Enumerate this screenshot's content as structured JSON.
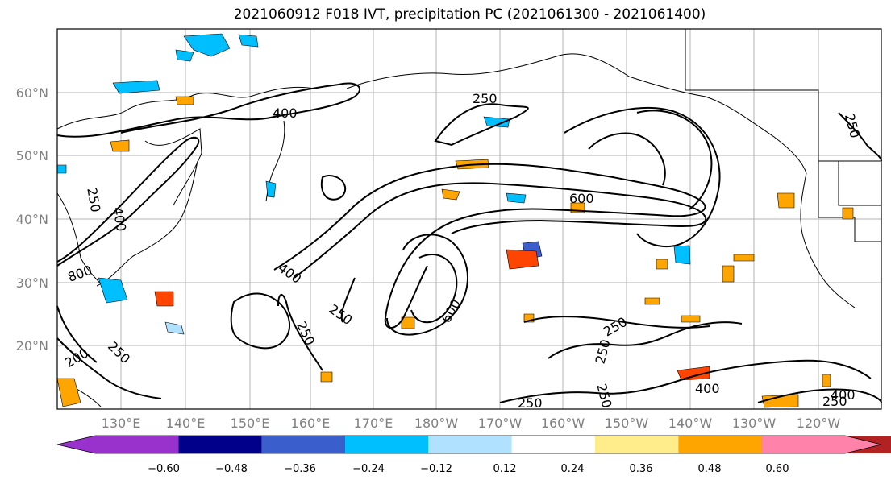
{
  "title": "2021060912 F018 IVT, precipitation PC (2021061300 - 2021061400)",
  "lat_labels": [
    "60°N",
    "50°N",
    "40°N",
    "30°N",
    "20°N"
  ],
  "lon_labels": [
    "130°E",
    "140°E",
    "150°E",
    "160°E",
    "170°E",
    "180°W",
    "170°W",
    "160°W",
    "150°W",
    "140°W",
    "130°W",
    "120°W"
  ],
  "colorbar": {
    "colors": [
      "#9932cc",
      "#00008b",
      "#3a5fcd",
      "#00bfff",
      "#b0e2ff",
      "#ffffff",
      "#ffec8b",
      "#ffa500",
      "#ff4500",
      "#b22222",
      "#ff82ab"
    ],
    "tick_labels": [
      "−0.60",
      "−0.48",
      "−0.36",
      "−0.24",
      "−0.12",
      "0.12",
      "0.24",
      "0.36",
      "0.48",
      "0.60"
    ]
  },
  "contour_labels": [
    "400",
    "250",
    "600",
    "250",
    "400",
    "600",
    "250",
    "250",
    "250",
    "250",
    "250",
    "400",
    "250",
    "250",
    "800",
    "200",
    "250",
    "400",
    "250",
    "400"
  ]
}
